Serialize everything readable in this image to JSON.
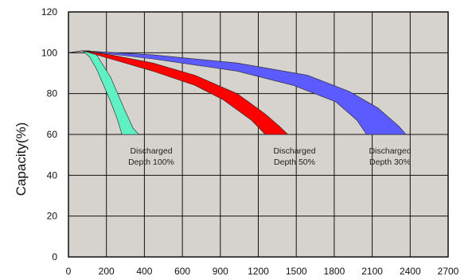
{
  "chart_data": {
    "type": "area",
    "title": "",
    "xlabel": "",
    "ylabel": "Capacity(%)",
    "xlim": [
      0,
      2700
    ],
    "ylim": [
      0,
      120
    ],
    "x_ticks": [
      0,
      200,
      400,
      600,
      900,
      1200,
      1500,
      1800,
      2100,
      2400,
      2700
    ],
    "y_ticks": [
      0,
      20,
      40,
      60,
      80,
      100,
      120
    ],
    "grid": true,
    "background": "#d6d3cf",
    "series": [
      {
        "color": "#5ff0c3",
        "label": [
          "Discharged",
          "Depth 100%"
        ],
        "upper": [
          [
            0,
            100
          ],
          [
            100,
            101
          ],
          [
            150,
            101
          ],
          [
            200,
            99
          ],
          [
            300,
            88
          ],
          [
            400,
            72
          ],
          [
            460,
            63
          ],
          [
            500,
            60
          ]
        ],
        "lower": [
          [
            0,
            100
          ],
          [
            100,
            101
          ],
          [
            150,
            98
          ],
          [
            200,
            92
          ],
          [
            250,
            84
          ],
          [
            300,
            76
          ],
          [
            350,
            67
          ],
          [
            380,
            60
          ]
        ]
      },
      {
        "color": "#ff0000",
        "label": [
          "Discharged",
          "Depth 50%"
        ],
        "upper": [
          [
            0,
            100
          ],
          [
            100,
            101
          ],
          [
            300,
            99
          ],
          [
            600,
            95
          ],
          [
            900,
            89
          ],
          [
            1200,
            80
          ],
          [
            1400,
            70
          ],
          [
            1500,
            64
          ],
          [
            1560,
            60
          ]
        ],
        "lower": [
          [
            0,
            100
          ],
          [
            100,
            101
          ],
          [
            300,
            97
          ],
          [
            600,
            91
          ],
          [
            900,
            84
          ],
          [
            1100,
            77
          ],
          [
            1300,
            67
          ],
          [
            1400,
            60
          ]
        ]
      },
      {
        "color": "#5b5bff",
        "label": [
          "Discharged",
          "Depth 30%"
        ],
        "upper": [
          [
            0,
            100
          ],
          [
            100,
            101
          ],
          [
            600,
            99
          ],
          [
            1200,
            95
          ],
          [
            1700,
            89
          ],
          [
            2000,
            81
          ],
          [
            2200,
            73
          ],
          [
            2350,
            64
          ],
          [
            2400,
            60
          ]
        ],
        "lower": [
          [
            0,
            100
          ],
          [
            100,
            101
          ],
          [
            600,
            97
          ],
          [
            1200,
            91
          ],
          [
            1600,
            84
          ],
          [
            1900,
            76
          ],
          [
            2050,
            67
          ],
          [
            2120,
            60
          ]
        ]
      }
    ]
  }
}
